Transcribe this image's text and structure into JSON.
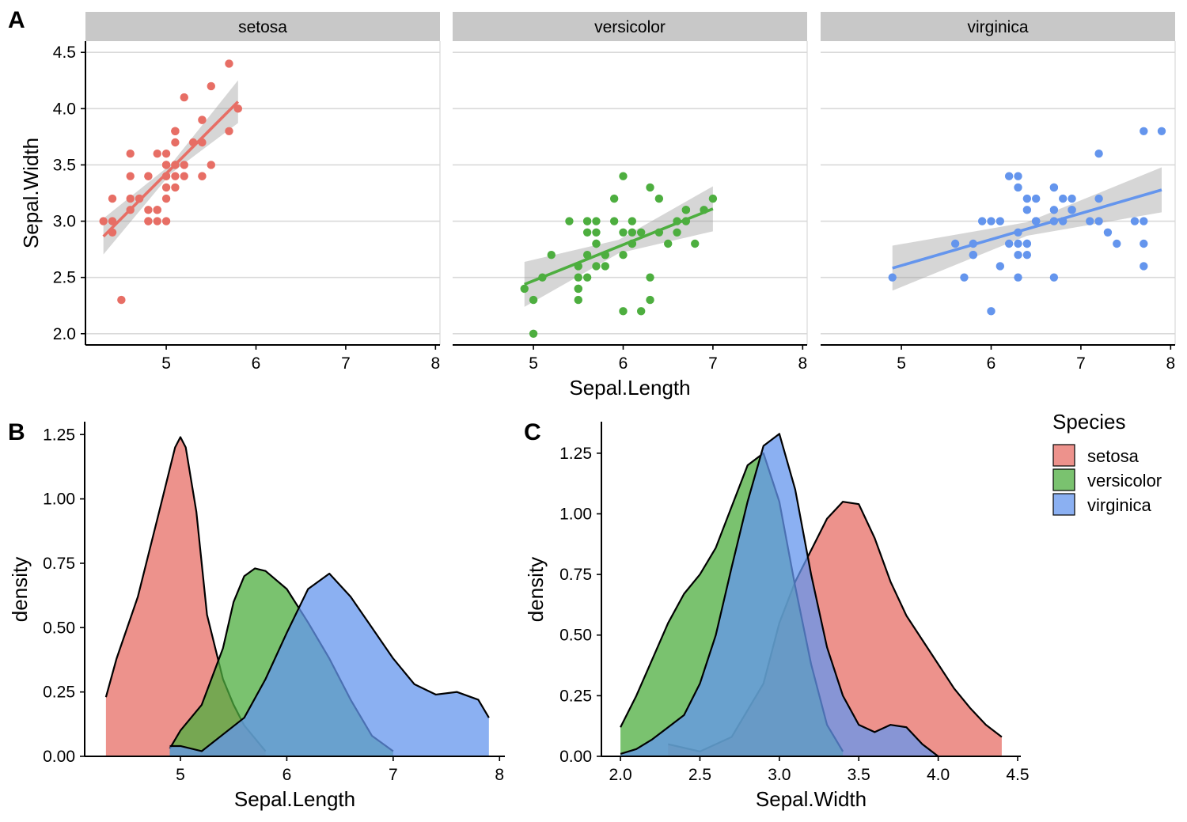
{
  "colors": {
    "setosa": "#E76E65",
    "versicolor": "#4DAE3F",
    "virginica": "#6495ED",
    "band": "#999999",
    "grid": "#d9d9d9",
    "strip": "#c8c8c8"
  },
  "legend": {
    "title": "Species",
    "items": [
      "setosa",
      "versicolor",
      "virginica"
    ]
  },
  "panel_tags": [
    "A",
    "B",
    "C"
  ],
  "chart_data": [
    {
      "id": "A",
      "type": "scatter",
      "facet_labels": [
        "setosa",
        "versicolor",
        "virginica"
      ],
      "xlabel": "Sepal.Length",
      "ylabel": "Sepal.Width",
      "xlim": [
        4.1,
        8.05
      ],
      "ylim": [
        1.9,
        4.6
      ],
      "xticks": [
        5,
        6,
        7,
        8
      ],
      "yticks": [
        2.0,
        2.5,
        3.0,
        3.5,
        4.0,
        4.5
      ],
      "ytick_labels": [
        "2.0",
        "2.5",
        "3.0",
        "3.5",
        "4.0",
        "4.5"
      ],
      "grid": "horizontal",
      "series": [
        {
          "name": "setosa",
          "points": [
            [
              5.1,
              3.5
            ],
            [
              4.9,
              3.0
            ],
            [
              4.7,
              3.2
            ],
            [
              4.6,
              3.1
            ],
            [
              5.0,
              3.6
            ],
            [
              5.4,
              3.9
            ],
            [
              4.6,
              3.4
            ],
            [
              5.0,
              3.4
            ],
            [
              4.4,
              2.9
            ],
            [
              4.9,
              3.1
            ],
            [
              5.4,
              3.7
            ],
            [
              4.8,
              3.4
            ],
            [
              4.8,
              3.0
            ],
            [
              4.3,
              3.0
            ],
            [
              5.8,
              4.0
            ],
            [
              5.7,
              4.4
            ],
            [
              5.4,
              3.9
            ],
            [
              5.1,
              3.5
            ],
            [
              5.7,
              3.8
            ],
            [
              5.1,
              3.8
            ],
            [
              5.4,
              3.4
            ],
            [
              5.1,
              3.7
            ],
            [
              4.6,
              3.6
            ],
            [
              5.1,
              3.3
            ],
            [
              4.8,
              3.4
            ],
            [
              5.0,
              3.0
            ],
            [
              5.0,
              3.4
            ],
            [
              5.2,
              3.5
            ],
            [
              5.2,
              3.4
            ],
            [
              4.7,
              3.2
            ],
            [
              4.8,
              3.1
            ],
            [
              5.4,
              3.4
            ],
            [
              5.2,
              4.1
            ],
            [
              5.5,
              4.2
            ],
            [
              4.9,
              3.1
            ],
            [
              5.0,
              3.2
            ],
            [
              5.5,
              3.5
            ],
            [
              4.9,
              3.6
            ],
            [
              4.4,
              3.0
            ],
            [
              5.1,
              3.4
            ],
            [
              5.0,
              3.5
            ],
            [
              4.5,
              2.3
            ],
            [
              4.4,
              3.2
            ],
            [
              5.0,
              3.5
            ],
            [
              5.1,
              3.8
            ],
            [
              4.8,
              3.0
            ],
            [
              5.1,
              3.8
            ],
            [
              4.6,
              3.2
            ],
            [
              5.3,
              3.7
            ],
            [
              5.0,
              3.3
            ]
          ],
          "fit": {
            "intercept": -0.5694,
            "slope": 0.7985,
            "x_range": [
              4.3,
              5.8
            ],
            "band_half_width": [
              0.16,
              0.04,
              0.19
            ]
          }
        },
        {
          "name": "versicolor",
          "points": [
            [
              7.0,
              3.2
            ],
            [
              6.4,
              3.2
            ],
            [
              6.9,
              3.1
            ],
            [
              5.5,
              2.3
            ],
            [
              6.5,
              2.8
            ],
            [
              5.7,
              2.8
            ],
            [
              6.3,
              3.3
            ],
            [
              4.9,
              2.4
            ],
            [
              6.6,
              2.9
            ],
            [
              5.2,
              2.7
            ],
            [
              5.0,
              2.0
            ],
            [
              5.9,
              3.0
            ],
            [
              6.0,
              2.2
            ],
            [
              6.1,
              2.9
            ],
            [
              5.6,
              2.9
            ],
            [
              6.7,
              3.1
            ],
            [
              5.6,
              3.0
            ],
            [
              5.8,
              2.7
            ],
            [
              6.2,
              2.2
            ],
            [
              5.6,
              2.5
            ],
            [
              5.9,
              3.2
            ],
            [
              6.1,
              2.8
            ],
            [
              6.3,
              2.5
            ],
            [
              6.1,
              2.8
            ],
            [
              6.4,
              2.9
            ],
            [
              6.6,
              3.0
            ],
            [
              6.8,
              2.8
            ],
            [
              6.7,
              3.0
            ],
            [
              6.0,
              2.9
            ],
            [
              5.7,
              2.6
            ],
            [
              5.5,
              2.4
            ],
            [
              5.5,
              2.4
            ],
            [
              5.8,
              2.7
            ],
            [
              6.0,
              2.7
            ],
            [
              5.4,
              3.0
            ],
            [
              6.0,
              3.4
            ],
            [
              6.7,
              3.1
            ],
            [
              6.3,
              2.3
            ],
            [
              5.6,
              3.0
            ],
            [
              5.5,
              2.5
            ],
            [
              5.5,
              2.6
            ],
            [
              6.1,
              3.0
            ],
            [
              5.8,
              2.6
            ],
            [
              5.0,
              2.3
            ],
            [
              5.6,
              2.7
            ],
            [
              5.7,
              3.0
            ],
            [
              5.7,
              2.9
            ],
            [
              6.2,
              2.9
            ],
            [
              5.1,
              2.5
            ],
            [
              5.7,
              2.8
            ]
          ],
          "fit": {
            "intercept": 0.8721,
            "slope": 0.3197,
            "x_range": [
              4.9,
              7.0
            ],
            "band_half_width": [
              0.2,
              0.06,
              0.2
            ]
          }
        },
        {
          "name": "virginica",
          "points": [
            [
              6.3,
              3.3
            ],
            [
              5.8,
              2.7
            ],
            [
              7.1,
              3.0
            ],
            [
              6.3,
              2.9
            ],
            [
              6.5,
              3.0
            ],
            [
              7.6,
              3.0
            ],
            [
              4.9,
              2.5
            ],
            [
              7.3,
              2.9
            ],
            [
              6.7,
              2.5
            ],
            [
              7.2,
              3.6
            ],
            [
              6.5,
              3.2
            ],
            [
              6.4,
              2.7
            ],
            [
              6.8,
              3.0
            ],
            [
              5.7,
              2.5
            ],
            [
              5.8,
              2.8
            ],
            [
              6.4,
              3.2
            ],
            [
              6.5,
              3.0
            ],
            [
              7.7,
              3.8
            ],
            [
              7.7,
              2.6
            ],
            [
              6.0,
              2.2
            ],
            [
              6.9,
              3.2
            ],
            [
              5.6,
              2.8
            ],
            [
              7.7,
              2.8
            ],
            [
              6.3,
              2.7
            ],
            [
              6.7,
              3.3
            ],
            [
              7.2,
              3.2
            ],
            [
              6.2,
              2.8
            ],
            [
              6.1,
              3.0
            ],
            [
              6.4,
              2.8
            ],
            [
              7.2,
              3.0
            ],
            [
              7.4,
              2.8
            ],
            [
              7.9,
              3.8
            ],
            [
              6.4,
              2.8
            ],
            [
              6.3,
              2.8
            ],
            [
              6.1,
              2.6
            ],
            [
              7.7,
              3.0
            ],
            [
              6.3,
              3.4
            ],
            [
              6.4,
              3.1
            ],
            [
              6.0,
              3.0
            ],
            [
              6.9,
              3.1
            ],
            [
              6.7,
              3.1
            ],
            [
              6.9,
              3.1
            ],
            [
              5.8,
              2.7
            ],
            [
              6.8,
              3.2
            ],
            [
              6.7,
              3.3
            ],
            [
              6.7,
              3.0
            ],
            [
              6.3,
              2.5
            ],
            [
              6.5,
              3.0
            ],
            [
              6.2,
              3.4
            ],
            [
              5.9,
              3.0
            ]
          ],
          "fit": {
            "intercept": 1.4463,
            "slope": 0.2319,
            "x_range": [
              4.9,
              7.9
            ],
            "band_half_width": [
              0.2,
              0.06,
              0.2
            ]
          }
        }
      ]
    },
    {
      "id": "B",
      "type": "area",
      "xlabel": "Sepal.Length",
      "ylabel": "density",
      "xlim": [
        4.1,
        8.05
      ],
      "ylim": [
        0,
        1.3
      ],
      "xticks": [
        5,
        6,
        7,
        8
      ],
      "yticks": [
        0,
        0.25,
        0.5,
        0.75,
        1.0,
        1.25
      ],
      "ytick_labels": [
        "0.00",
        "0.25",
        "0.50",
        "0.75",
        "1.00",
        "1.25"
      ],
      "series": [
        {
          "name": "setosa",
          "x": [
            4.3,
            4.4,
            4.6,
            4.8,
            4.95,
            5.0,
            5.05,
            5.15,
            5.25,
            5.4,
            5.5,
            5.6,
            5.8
          ],
          "y": [
            0.23,
            0.38,
            0.62,
            0.95,
            1.2,
            1.24,
            1.2,
            0.95,
            0.55,
            0.3,
            0.2,
            0.12,
            0.02
          ]
        },
        {
          "name": "versicolor",
          "x": [
            4.9,
            5.0,
            5.2,
            5.4,
            5.5,
            5.6,
            5.7,
            5.8,
            6.0,
            6.2,
            6.4,
            6.6,
            6.8,
            7.0
          ],
          "y": [
            0.03,
            0.1,
            0.2,
            0.42,
            0.6,
            0.7,
            0.73,
            0.72,
            0.65,
            0.52,
            0.38,
            0.22,
            0.08,
            0.02
          ]
        },
        {
          "name": "virginica",
          "x": [
            4.9,
            5.0,
            5.2,
            5.6,
            5.8,
            6.0,
            6.2,
            6.4,
            6.6,
            6.8,
            7.0,
            7.2,
            7.4,
            7.6,
            7.8,
            7.9
          ],
          "y": [
            0.04,
            0.04,
            0.02,
            0.15,
            0.3,
            0.48,
            0.65,
            0.71,
            0.62,
            0.5,
            0.38,
            0.28,
            0.24,
            0.25,
            0.22,
            0.15
          ]
        }
      ]
    },
    {
      "id": "C",
      "type": "area",
      "xlabel": "Sepal.Width",
      "ylabel": "density",
      "xlim": [
        1.88,
        4.52
      ],
      "ylim": [
        0,
        1.38
      ],
      "xticks": [
        2.0,
        2.5,
        3.0,
        3.5,
        4.0,
        4.5
      ],
      "xtick_labels": [
        "2.0",
        "2.5",
        "3.0",
        "3.5",
        "4.0",
        "4.5"
      ],
      "yticks": [
        0,
        0.25,
        0.5,
        0.75,
        1.0,
        1.25
      ],
      "ytick_labels": [
        "0.00",
        "0.25",
        "0.50",
        "0.75",
        "1.00",
        "1.25"
      ],
      "series": [
        {
          "name": "setosa",
          "x": [
            2.3,
            2.5,
            2.7,
            2.9,
            3.0,
            3.1,
            3.2,
            3.3,
            3.4,
            3.5,
            3.6,
            3.7,
            3.8,
            3.9,
            4.0,
            4.1,
            4.2,
            4.3,
            4.4
          ],
          "y": [
            0.05,
            0.02,
            0.08,
            0.3,
            0.55,
            0.72,
            0.85,
            0.98,
            1.05,
            1.04,
            0.9,
            0.72,
            0.58,
            0.48,
            0.38,
            0.28,
            0.2,
            0.13,
            0.08
          ]
        },
        {
          "name": "versicolor",
          "x": [
            2.0,
            2.1,
            2.2,
            2.3,
            2.4,
            2.5,
            2.6,
            2.7,
            2.8,
            2.9,
            3.0,
            3.1,
            3.2,
            3.3,
            3.4
          ],
          "y": [
            0.12,
            0.25,
            0.4,
            0.55,
            0.67,
            0.75,
            0.86,
            1.03,
            1.2,
            1.25,
            1.05,
            0.7,
            0.38,
            0.13,
            0.02
          ]
        },
        {
          "name": "virginica",
          "x": [
            2.0,
            2.1,
            2.2,
            2.3,
            2.4,
            2.5,
            2.6,
            2.7,
            2.8,
            2.9,
            3.0,
            3.1,
            3.2,
            3.3,
            3.4,
            3.5,
            3.6,
            3.7,
            3.8,
            3.9,
            4.0
          ],
          "y": [
            0.01,
            0.03,
            0.07,
            0.12,
            0.17,
            0.3,
            0.5,
            0.78,
            1.05,
            1.28,
            1.33,
            1.1,
            0.75,
            0.45,
            0.25,
            0.13,
            0.1,
            0.13,
            0.12,
            0.05,
            0.0
          ]
        }
      ]
    }
  ]
}
